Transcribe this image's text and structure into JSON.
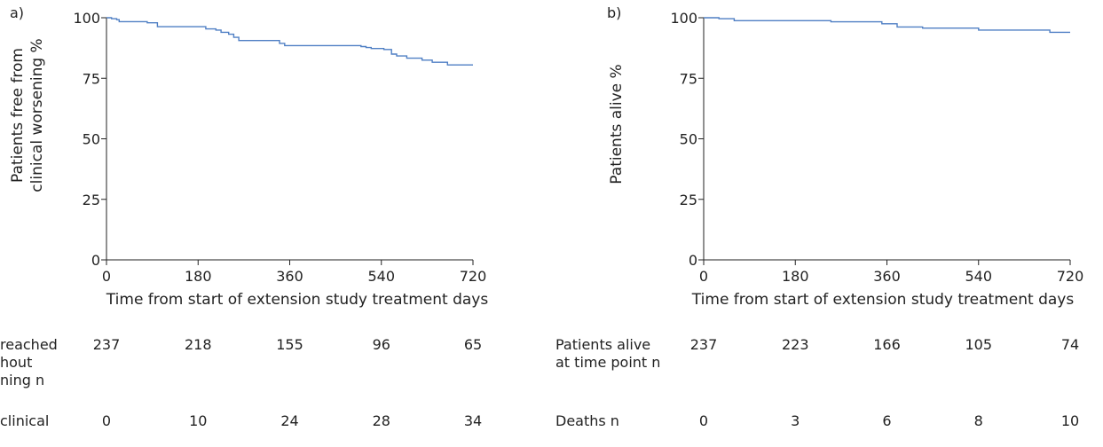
{
  "colors": {
    "curve": "#4f7fc4",
    "axis": "#222222",
    "text": "#222222"
  },
  "chart_data": [
    {
      "type": "line",
      "panel_label": "a)",
      "ylabel_lines": [
        "Patients free from",
        "clinical worsening %"
      ],
      "xlabel": "Time from start of extension study treatment days",
      "xlim": [
        0,
        720
      ],
      "ylim": [
        0,
        100
      ],
      "xticks": [
        "0",
        "180",
        "360",
        "540",
        "720"
      ],
      "yticks": [
        "0",
        "25",
        "50",
        "75",
        "100"
      ],
      "grid": false,
      "step": true,
      "series": [
        {
          "x": [
            0,
            10,
            20,
            25,
            80,
            100,
            180,
            195,
            215,
            225,
            240,
            250,
            260,
            330,
            340,
            350,
            420,
            500,
            510,
            520,
            530,
            545,
            560,
            570,
            590,
            620,
            640,
            670,
            720
          ],
          "y": [
            100,
            99.6,
            99.2,
            98.4,
            97.9,
            96.3,
            96.3,
            95.4,
            94.9,
            94.0,
            93.2,
            91.9,
            90.6,
            90.6,
            89.4,
            88.5,
            88.5,
            88.1,
            87.7,
            87.3,
            87.3,
            86.9,
            85.0,
            84.2,
            83.3,
            82.5,
            81.6,
            80.5,
            80.5
          ]
        }
      ],
      "risk_table": [
        {
          "label": "reached\nhout\nning n",
          "values": [
            "237",
            "218",
            "155",
            "96",
            "65"
          ]
        },
        {
          "label": "clinical",
          "values": [
            "0",
            "10",
            "24",
            "28",
            "34"
          ]
        }
      ]
    },
    {
      "type": "line",
      "panel_label": "b)",
      "ylabel_lines": [
        "Patients alive %"
      ],
      "xlabel": "Time from start of extension study treatment days",
      "xlim": [
        0,
        720
      ],
      "ylim": [
        0,
        100
      ],
      "xticks": [
        "0",
        "180",
        "360",
        "540",
        "720"
      ],
      "yticks": [
        "0",
        "25",
        "50",
        "75",
        "100"
      ],
      "grid": false,
      "step": true,
      "series": [
        {
          "x": [
            0,
            30,
            60,
            250,
            350,
            380,
            430,
            540,
            680,
            720
          ],
          "y": [
            100,
            99.6,
            98.8,
            98.3,
            97.5,
            96.2,
            95.7,
            94.9,
            94.0,
            94.0
          ]
        }
      ],
      "risk_table": [
        {
          "label": "Patients alive\nat time point n",
          "values": [
            "237",
            "223",
            "166",
            "105",
            "74"
          ]
        },
        {
          "label": "Deaths n",
          "values": [
            "0",
            "3",
            "6",
            "8",
            "10"
          ]
        }
      ]
    }
  ]
}
